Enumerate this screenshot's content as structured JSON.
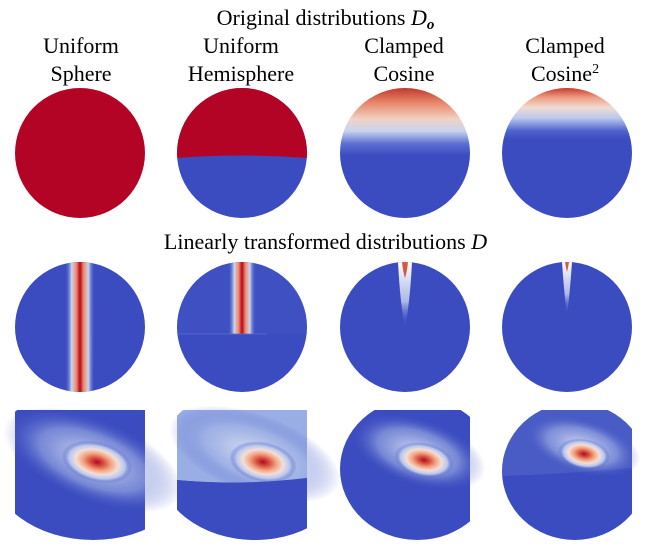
{
  "titles": {
    "original_text": "Original distributions",
    "original_symbol": "D",
    "original_subscript": "o",
    "transformed_text": "Linearly transformed distributions",
    "transformed_symbol": "D"
  },
  "columns": [
    {
      "line1": "Uniform",
      "line2": "Sphere",
      "sup": ""
    },
    {
      "line1": "Uniform",
      "line2": "Hemisphere",
      "sup": ""
    },
    {
      "line1": "Clamped",
      "line2": "Cosine",
      "sup": ""
    },
    {
      "line1": "Clamped",
      "line2": "Cosine",
      "sup": "2"
    }
  ],
  "colors": {
    "red": "#b40426",
    "blue": "#3b4cc0",
    "white": "#f4f4f4"
  }
}
